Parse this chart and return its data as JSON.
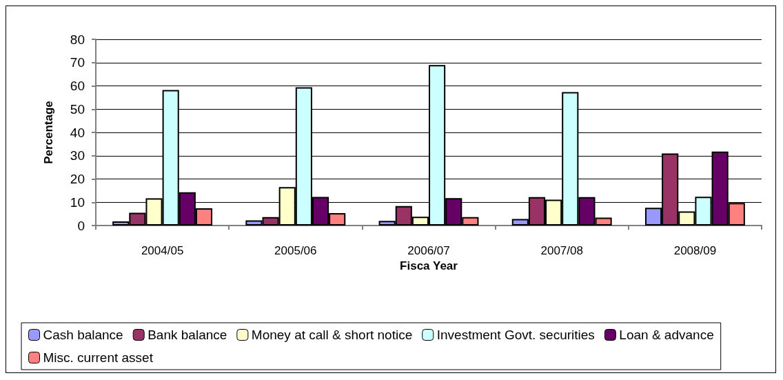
{
  "chart_data": {
    "type": "bar",
    "xlabel": "Fisca Year",
    "ylabel": "Percentage",
    "categories": [
      "2004/05",
      "2005/06",
      "2006/07",
      "2007/08",
      "2008/09"
    ],
    "series": [
      {
        "name": "Cash balance",
        "color": "#9999ff",
        "values": [
          1.8,
          2.2,
          2.0,
          2.8,
          7.6
        ]
      },
      {
        "name": "Bank balance",
        "color": "#993366",
        "values": [
          5.5,
          3.6,
          8.4,
          12.2,
          31.0
        ]
      },
      {
        "name": "Money at call & short notice",
        "color": "#ffffcc",
        "values": [
          11.7,
          16.5,
          3.8,
          11.1,
          6.1
        ]
      },
      {
        "name": "Investment Govt. securities",
        "color": "#ccffff",
        "values": [
          58.2,
          59.4,
          69.0,
          57.3,
          12.4
        ]
      },
      {
        "name": "Loan & advance",
        "color": "#660066",
        "values": [
          14.3,
          12.3,
          11.8,
          12.2,
          31.8
        ]
      },
      {
        "name": "Misc. current asset",
        "color": "#ff8080",
        "values": [
          7.4,
          5.3,
          3.6,
          3.4,
          9.7
        ]
      }
    ],
    "ylim": [
      0,
      80
    ],
    "yticks": [
      0,
      10,
      20,
      30,
      40,
      50,
      60,
      70,
      80
    ],
    "grid": "y",
    "legend": "bottom"
  }
}
